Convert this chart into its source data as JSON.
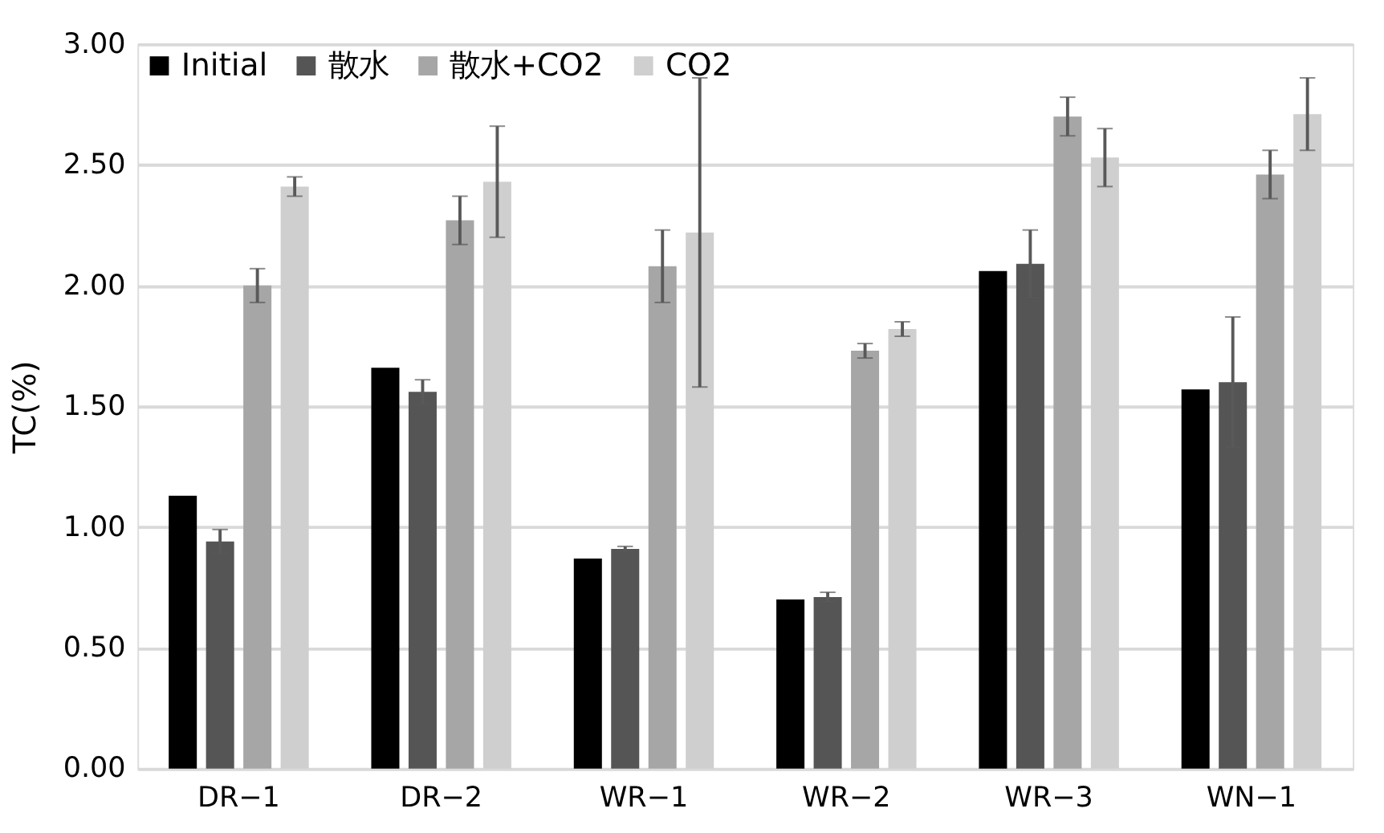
{
  "chart_data": {
    "type": "bar",
    "ylabel": "TC(%)",
    "categories": [
      "DR−1",
      "DR−2",
      "WR−1",
      "WR−2",
      "WR−3",
      "WN−1"
    ],
    "series": [
      {
        "name": "Initial",
        "color": "#000000",
        "values": [
          1.13,
          1.66,
          0.87,
          0.7,
          2.06,
          1.57
        ]
      },
      {
        "name": "散水",
        "color": "#555555",
        "values": [
          0.94,
          1.56,
          0.91,
          0.71,
          2.09,
          1.6
        ],
        "errors": [
          0.05,
          0.05,
          0.01,
          0.02,
          0.14,
          0.27
        ]
      },
      {
        "name": "散水+CO2",
        "color": "#a6a6a6",
        "values": [
          2.0,
          2.27,
          2.08,
          1.73,
          2.7,
          2.46
        ],
        "errors": [
          0.07,
          0.1,
          0.15,
          0.03,
          0.08,
          0.1
        ]
      },
      {
        "name": "CO2",
        "color": "#cfcfcf",
        "values": [
          2.41,
          2.43,
          2.22,
          1.82,
          2.53,
          2.71
        ],
        "errors": [
          0.04,
          0.23,
          0.64,
          0.03,
          0.12,
          0.15
        ]
      }
    ],
    "ylim": [
      0,
      3
    ],
    "yticks": [
      {
        "value": 0,
        "label": "0.00"
      },
      {
        "value": 0.5,
        "label": "0.50"
      },
      {
        "value": 1,
        "label": "1.00"
      },
      {
        "value": 1.5,
        "label": "1.50"
      },
      {
        "value": 2,
        "label": "2.00"
      },
      {
        "value": 2.5,
        "label": "2.50"
      },
      {
        "value": 3,
        "label": "3.00"
      }
    ],
    "grid": "y",
    "legend": "top left"
  }
}
